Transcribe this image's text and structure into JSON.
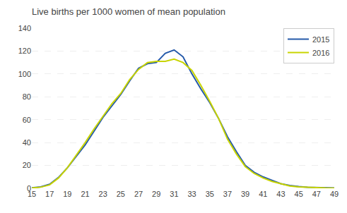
{
  "chart_data": {
    "type": "line",
    "title": "Live births per 1000 women of mean population",
    "x": [
      15,
      16,
      17,
      18,
      19,
      20,
      21,
      22,
      23,
      24,
      25,
      26,
      27,
      28,
      29,
      30,
      31,
      32,
      33,
      34,
      35,
      36,
      37,
      38,
      39,
      40,
      41,
      42,
      43,
      44,
      45,
      46,
      47,
      48,
      49
    ],
    "series": [
      {
        "name": "2015",
        "color": "#2459A9",
        "values": [
          0.4,
          1.2,
          3.5,
          9.5,
          18,
          28,
          38,
          50,
          62,
          72,
          82,
          94,
          105,
          109,
          110,
          118,
          121,
          115,
          100,
          87,
          75,
          61,
          45,
          32,
          20,
          14,
          10,
          7,
          4,
          2.5,
          1.5,
          1.0,
          0.8,
          0.5,
          0.3
        ]
      },
      {
        "name": "2016",
        "color": "#C8D400",
        "values": [
          0.3,
          1.0,
          3.0,
          9.0,
          18,
          29,
          40,
          52,
          63,
          74,
          83,
          95,
          104,
          110,
          111,
          111,
          113,
          110,
          103,
          90,
          76,
          61,
          43,
          30,
          19,
          13,
          9,
          6,
          4,
          2.0,
          1.2,
          0.8,
          0.6,
          0.3,
          0.2
        ]
      }
    ],
    "xlim": [
      15,
      49
    ],
    "xticks": [
      15,
      17,
      19,
      21,
      23,
      25,
      27,
      29,
      31,
      33,
      35,
      37,
      39,
      41,
      43,
      45,
      47,
      49
    ],
    "ylim": [
      0,
      140
    ],
    "yticks": [
      0,
      20,
      40,
      60,
      80,
      100,
      120,
      140
    ],
    "grid": true,
    "legend": "upper right"
  }
}
